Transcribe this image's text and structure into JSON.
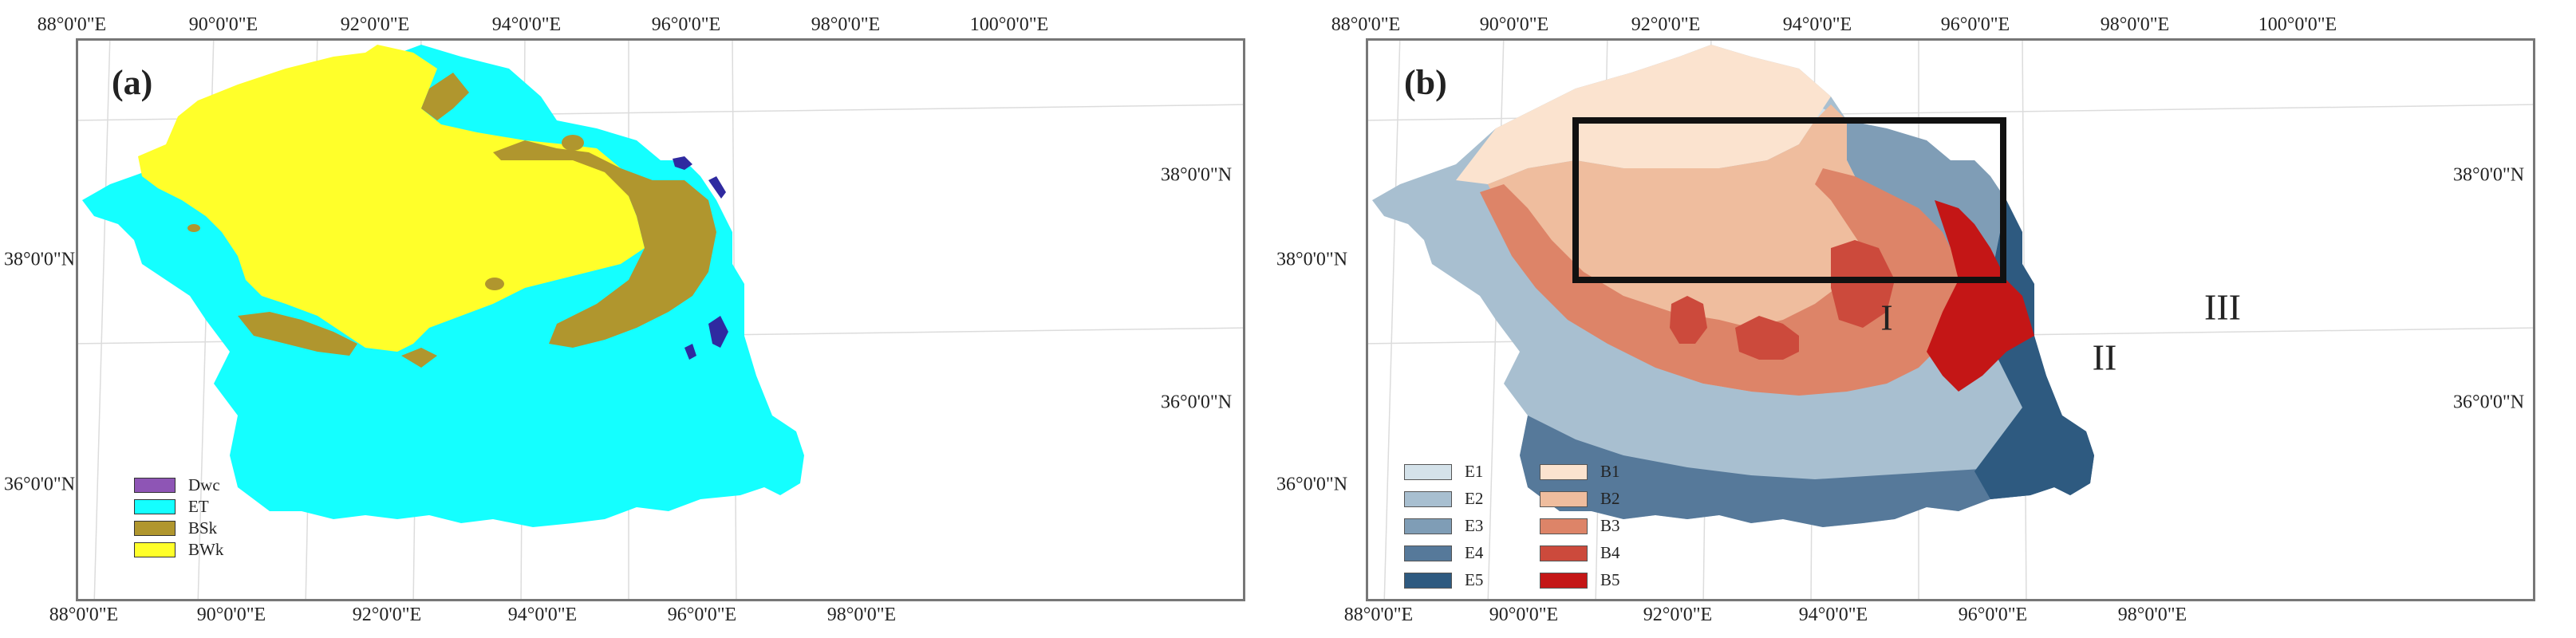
{
  "panel_a": {
    "label": "(a)",
    "top_ticks": [
      "88°0'0\"E",
      "90°0'0\"E",
      "92°0'0\"E",
      "94°0'0\"E",
      "96°0'0\"E",
      "98°0'0\"E",
      "100°0'0\"E"
    ],
    "bottom_ticks": [
      "88°0'0\"E",
      "90°0'0\"E",
      "92°0'0\"E",
      "94°0'0\"E",
      "96°0'0\"E",
      "98°0'0\"E"
    ],
    "left_ticks": [
      "38°0'0\"N",
      "36°0'0\"N"
    ],
    "right_ticks": [
      "38°0'0\"N",
      "36°0'0\"N"
    ],
    "legend": [
      {
        "label": "Dwc",
        "color": "#8e55b5"
      },
      {
        "label": "ET",
        "color": "#14ffff"
      },
      {
        "label": "BSk",
        "color": "#b0962e"
      },
      {
        "label": "BWk",
        "color": "#ffff2a"
      }
    ]
  },
  "panel_b": {
    "label": "(b)",
    "top_ticks": [
      "88°0'0\"E",
      "90°0'0\"E",
      "92°0'0\"E",
      "94°0'0\"E",
      "96°0'0\"E",
      "98°0'0\"E",
      "100°0'0\"E"
    ],
    "bottom_ticks": [
      "88°0'0\"E",
      "90°0'0\"E",
      "92°0'0\"E",
      "94°0'0\"E",
      "96°0'0\"E",
      "98°0'0\"E"
    ],
    "left_ticks": [
      "38°0'0\"N",
      "36°0'0\"N"
    ],
    "right_ticks": [
      "38°0'0\"N",
      "36°0'0\"N"
    ],
    "legend_left": [
      {
        "label": "E1",
        "color": "#d4e2ea"
      },
      {
        "label": "E2",
        "color": "#a8bfd0"
      },
      {
        "label": "E3",
        "color": "#7f9db6"
      },
      {
        "label": "E4",
        "color": "#56799a"
      },
      {
        "label": "E5",
        "color": "#2e5a80"
      }
    ],
    "legend_right": [
      {
        "label": "B1",
        "color": "#fbe3cf"
      },
      {
        "label": "B2",
        "color": "#efbd9e"
      },
      {
        "label": "B3",
        "color": "#dd8468"
      },
      {
        "label": "B4",
        "color": "#cc4a3c"
      },
      {
        "label": "B5",
        "color": "#c41616"
      }
    ],
    "regions": [
      "I",
      "II",
      "III"
    ]
  }
}
